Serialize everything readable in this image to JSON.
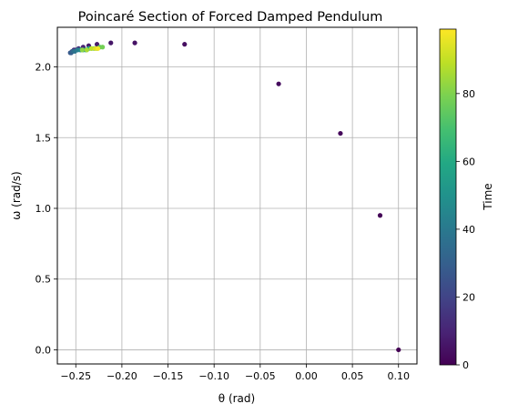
{
  "chart_data": {
    "type": "scatter",
    "title": "Poincaré Section of Forced Damped Pendulum",
    "xlabel": "θ (rad)",
    "ylabel": "ω (rad/s)",
    "xlim": [
      -0.27,
      0.12
    ],
    "ylim": [
      -0.1,
      2.28
    ],
    "xticks": [
      -0.25,
      -0.2,
      -0.15,
      -0.1,
      -0.05,
      0.0,
      0.05,
      0.1
    ],
    "xtick_labels": [
      "−0.25",
      "−0.20",
      "−0.15",
      "−0.10",
      "−0.05",
      "0.00",
      "0.05",
      "0.10"
    ],
    "yticks": [
      0.0,
      0.5,
      1.0,
      1.5,
      2.0
    ],
    "ytick_labels": [
      "0.0",
      "0.5",
      "1.0",
      "1.5",
      "2.0"
    ],
    "grid": true,
    "colormap": "viridis",
    "colorbar": {
      "label": "Time",
      "range": [
        0,
        99
      ],
      "ticks": [
        0,
        20,
        40,
        60,
        80
      ],
      "tick_labels": [
        "0",
        "20",
        "40",
        "60",
        "80"
      ]
    },
    "points": [
      {
        "x": 0.1,
        "y": 0.0,
        "t": 0
      },
      {
        "x": 0.08,
        "y": 0.95,
        "t": 1
      },
      {
        "x": 0.037,
        "y": 1.53,
        "t": 2
      },
      {
        "x": -0.03,
        "y": 1.88,
        "t": 3
      },
      {
        "x": -0.132,
        "y": 2.16,
        "t": 4
      },
      {
        "x": -0.186,
        "y": 2.17,
        "t": 5
      },
      {
        "x": -0.212,
        "y": 2.17,
        "t": 6
      },
      {
        "x": -0.227,
        "y": 2.16,
        "t": 7
      },
      {
        "x": -0.236,
        "y": 2.15,
        "t": 8
      },
      {
        "x": -0.242,
        "y": 2.14,
        "t": 10
      },
      {
        "x": -0.247,
        "y": 2.13,
        "t": 12
      },
      {
        "x": -0.25,
        "y": 2.12,
        "t": 14
      },
      {
        "x": -0.252,
        "y": 2.12,
        "t": 16
      },
      {
        "x": -0.254,
        "y": 2.11,
        "t": 18
      },
      {
        "x": -0.255,
        "y": 2.1,
        "t": 22
      },
      {
        "x": -0.256,
        "y": 2.1,
        "t": 26
      },
      {
        "x": -0.255,
        "y": 2.1,
        "t": 30
      },
      {
        "x": -0.253,
        "y": 2.11,
        "t": 34
      },
      {
        "x": -0.251,
        "y": 2.11,
        "t": 38
      },
      {
        "x": -0.248,
        "y": 2.12,
        "t": 42
      },
      {
        "x": -0.245,
        "y": 2.12,
        "t": 46
      },
      {
        "x": -0.242,
        "y": 2.12,
        "t": 50
      },
      {
        "x": -0.239,
        "y": 2.12,
        "t": 54
      },
      {
        "x": -0.236,
        "y": 2.13,
        "t": 58
      },
      {
        "x": -0.233,
        "y": 2.13,
        "t": 62
      },
      {
        "x": -0.23,
        "y": 2.13,
        "t": 66
      },
      {
        "x": -0.227,
        "y": 2.13,
        "t": 70
      },
      {
        "x": -0.224,
        "y": 2.14,
        "t": 74
      },
      {
        "x": -0.221,
        "y": 2.14,
        "t": 78
      },
      {
        "x": -0.243,
        "y": 2.12,
        "t": 82
      },
      {
        "x": -0.238,
        "y": 2.12,
        "t": 86
      },
      {
        "x": -0.233,
        "y": 2.13,
        "t": 90
      },
      {
        "x": -0.229,
        "y": 2.13,
        "t": 94
      },
      {
        "x": -0.226,
        "y": 2.13,
        "t": 98
      }
    ]
  }
}
